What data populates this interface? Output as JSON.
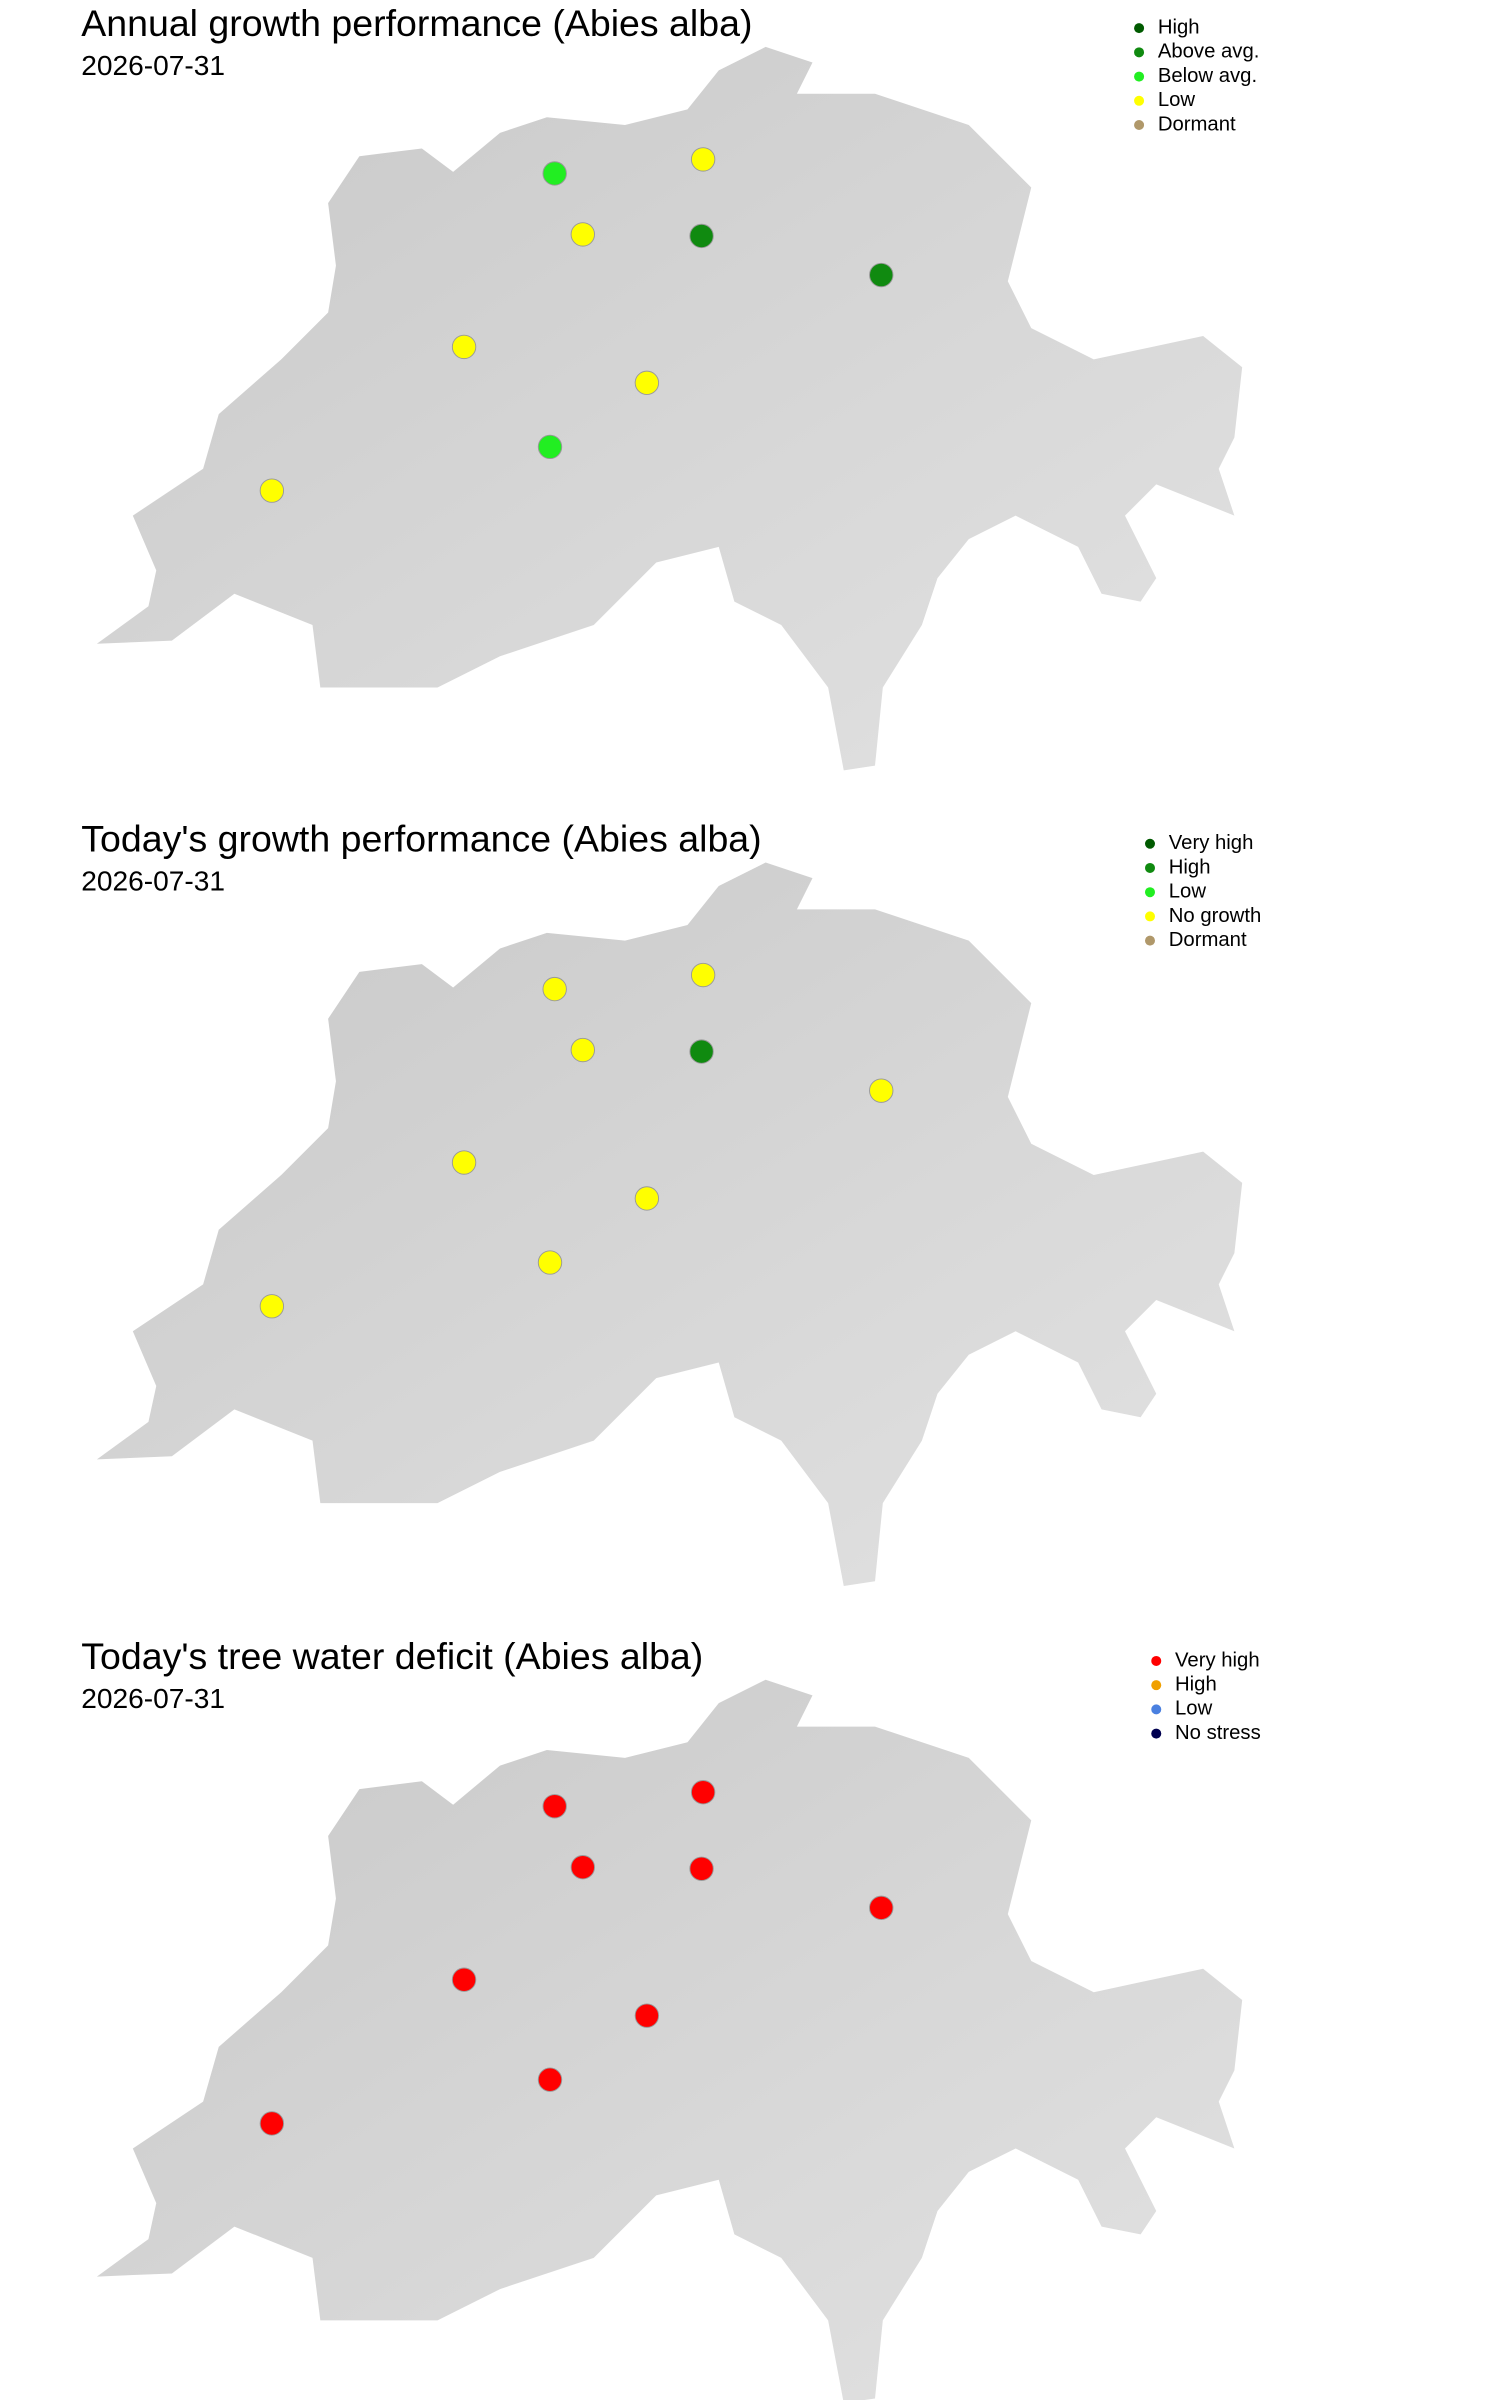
{
  "maps": [
    {
      "title": "Annual growth performance (Abies alba)",
      "date": "2026-07-31",
      "legend": [
        {
          "label": "High",
          "color": "#005a00"
        },
        {
          "label": "Above avg.",
          "color": "#108a10"
        },
        {
          "label": "Below avg.",
          "color": "#22ee22"
        },
        {
          "label": "Low",
          "color": "#ffff00"
        },
        {
          "label": "Dormant",
          "color": "#b0986a"
        }
      ],
      "sites": [
        "Below avg.",
        "Low",
        "Low",
        "Above avg.",
        "Above avg.",
        "Low",
        "Low",
        "Below avg.",
        "Low"
      ]
    },
    {
      "title": "Today's growth performance (Abies alba)",
      "date": "2026-07-31",
      "legend": [
        {
          "label": "Very high",
          "color": "#005a00"
        },
        {
          "label": "High",
          "color": "#108a10"
        },
        {
          "label": "Low",
          "color": "#22ee22"
        },
        {
          "label": "No growth",
          "color": "#ffff00"
        },
        {
          "label": "Dormant",
          "color": "#b0986a"
        }
      ],
      "sites": [
        "No growth",
        "No growth",
        "No growth",
        "High",
        "No growth",
        "No growth",
        "No growth",
        "No growth",
        "No growth"
      ]
    },
    {
      "title": "Today's tree water deficit (Abies alba)",
      "date": "2026-07-31",
      "legend": [
        {
          "label": "Very high",
          "color": "#ff0000"
        },
        {
          "label": "High",
          "color": "#f0a000"
        },
        {
          "label": "Low",
          "color": "#4a80e0"
        },
        {
          "label": "No stress",
          "color": "#000050"
        }
      ],
      "sites": [
        "Very high",
        "Very high",
        "Very high",
        "Very high",
        "Very high",
        "Very high",
        "Very high",
        "Very high",
        "Very high"
      ]
    }
  ]
}
